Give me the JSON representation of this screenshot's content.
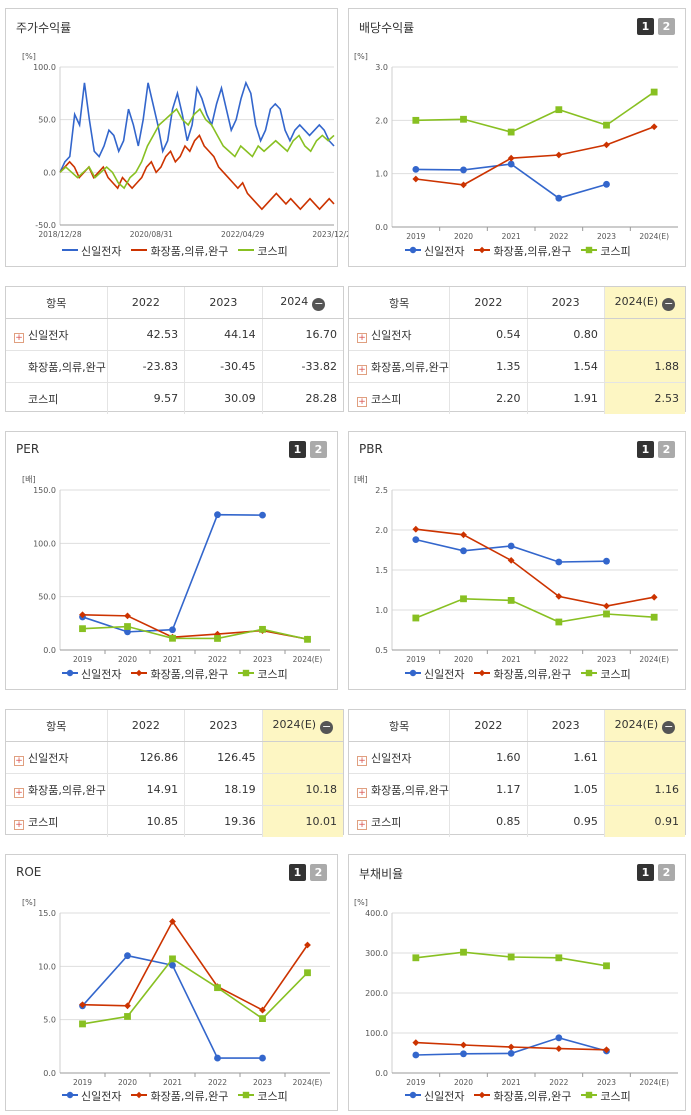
{
  "colors": {
    "s1": "#3366cc",
    "s2": "#cc3300",
    "s3": "#88c022"
  },
  "legend": [
    "신일전자",
    "화장품,의류,완구",
    "코스피"
  ],
  "buttons": {
    "b1": "1",
    "b2": "2"
  },
  "panels": {
    "stock": {
      "title": "주가수익률"
    },
    "div": {
      "title": "배당수익률"
    },
    "per": {
      "title": "PER"
    },
    "pbr": {
      "title": "PBR"
    },
    "roe": {
      "title": "ROE"
    },
    "debt": {
      "title": "부채비율"
    }
  },
  "tables": {
    "stock": {
      "header": [
        "항목",
        "2022",
        "2023",
        "2024"
      ],
      "rows": [
        {
          "name": "신일전자",
          "plus": true,
          "vals": [
            "42.53",
            "44.14",
            "16.70"
          ]
        },
        {
          "name": "화장품,의류,완구",
          "plus": false,
          "vals": [
            "-23.83",
            "-30.45",
            "-33.82"
          ]
        },
        {
          "name": "코스피",
          "plus": false,
          "vals": [
            "9.57",
            "30.09",
            "28.28"
          ]
        }
      ]
    },
    "div": {
      "header": [
        "항목",
        "2022",
        "2023",
        "2024(E)"
      ],
      "rows": [
        {
          "name": "신일전자",
          "plus": true,
          "vals": [
            "0.54",
            "0.80",
            ""
          ]
        },
        {
          "name": "화장품,의류,완구",
          "plus": true,
          "vals": [
            "1.35",
            "1.54",
            "1.88"
          ]
        },
        {
          "name": "코스피",
          "plus": true,
          "vals": [
            "2.20",
            "1.91",
            "2.53"
          ]
        }
      ]
    },
    "per": {
      "header": [
        "항목",
        "2022",
        "2023",
        "2024(E)"
      ],
      "rows": [
        {
          "name": "신일전자",
          "plus": true,
          "vals": [
            "126.86",
            "126.45",
            ""
          ]
        },
        {
          "name": "화장품,의류,완구",
          "plus": true,
          "vals": [
            "14.91",
            "18.19",
            "10.18"
          ]
        },
        {
          "name": "코스피",
          "plus": true,
          "vals": [
            "10.85",
            "19.36",
            "10.01"
          ]
        }
      ]
    },
    "pbr": {
      "header": [
        "항목",
        "2022",
        "2023",
        "2024(E)"
      ],
      "rows": [
        {
          "name": "신일전자",
          "plus": true,
          "vals": [
            "1.60",
            "1.61",
            ""
          ]
        },
        {
          "name": "화장품,의류,완구",
          "plus": true,
          "vals": [
            "1.17",
            "1.05",
            "1.16"
          ]
        },
        {
          "name": "코스피",
          "plus": true,
          "vals": [
            "0.85",
            "0.95",
            "0.91"
          ]
        }
      ]
    }
  },
  "chart_data": [
    {
      "id": "stock",
      "type": "line",
      "unit": "[%]",
      "ylim": [
        -50,
        100
      ],
      "yticks": [
        "100.0",
        "50.0",
        "0.0",
        "-50.0"
      ],
      "xticklabels": [
        "2018/12/28",
        "2020/08/31",
        "2022/04/29",
        "2023/12/28"
      ],
      "series": [
        {
          "name": "신일전자",
          "values": [
            0,
            10,
            15,
            55,
            45,
            85,
            50,
            20,
            15,
            25,
            40,
            35,
            20,
            30,
            60,
            45,
            25,
            50,
            85,
            65,
            45,
            20,
            30,
            60,
            75,
            55,
            30,
            45,
            80,
            70,
            55,
            45,
            65,
            80,
            60,
            40,
            50,
            70,
            85,
            75,
            45,
            30,
            40,
            60,
            65,
            60,
            40,
            30,
            40,
            45,
            40,
            35,
            40,
            45,
            40,
            30,
            25
          ]
        },
        {
          "name": "화장품,의류,완구",
          "values": [
            0,
            5,
            10,
            5,
            -5,
            0,
            5,
            -5,
            0,
            5,
            -5,
            -10,
            -15,
            -5,
            -10,
            -15,
            -10,
            -5,
            5,
            10,
            0,
            5,
            15,
            20,
            10,
            15,
            25,
            20,
            30,
            35,
            25,
            20,
            15,
            5,
            0,
            -5,
            -10,
            -15,
            -10,
            -20,
            -25,
            -30,
            -35,
            -30,
            -25,
            -20,
            -25,
            -30,
            -25,
            -30,
            -35,
            -30,
            -25,
            -30,
            -35,
            -30,
            -25,
            -30
          ]
        },
        {
          "name": "코스피",
          "values": [
            0,
            5,
            0,
            -5,
            0,
            5,
            -5,
            0,
            5,
            0,
            -10,
            -15,
            -5,
            0,
            10,
            25,
            35,
            45,
            50,
            55,
            60,
            50,
            45,
            55,
            60,
            50,
            45,
            35,
            25,
            20,
            15,
            25,
            20,
            15,
            25,
            20,
            25,
            30,
            25,
            20,
            30,
            35,
            25,
            20,
            30,
            35,
            30,
            35
          ]
        }
      ]
    },
    {
      "id": "div",
      "type": "line",
      "unit": "[%]",
      "ylim": [
        0,
        3
      ],
      "yticks": [
        "3.0",
        "2.0",
        "1.0",
        "0.0"
      ],
      "categories": [
        "2019",
        "2020",
        "2021",
        "2022",
        "2023",
        "2024(E)"
      ],
      "series": [
        {
          "name": "신일전자",
          "values": [
            1.08,
            1.07,
            1.18,
            0.54,
            0.8,
            null
          ]
        },
        {
          "name": "화장품,의류,완구",
          "values": [
            0.9,
            0.79,
            1.29,
            1.35,
            1.54,
            1.88
          ]
        },
        {
          "name": "코스피",
          "values": [
            2.0,
            2.02,
            1.78,
            2.2,
            1.91,
            2.53
          ]
        }
      ]
    },
    {
      "id": "per",
      "type": "line",
      "unit": "[배]",
      "ylim": [
        0,
        150
      ],
      "yticks": [
        "150.0",
        "100.0",
        "50.0",
        "0.0"
      ],
      "categories": [
        "2019",
        "2020",
        "2021",
        "2022",
        "2023",
        "2024(E)"
      ],
      "series": [
        {
          "name": "신일전자",
          "values": [
            31,
            17,
            19,
            126.86,
            126.45,
            null
          ]
        },
        {
          "name": "화장품,의류,완구",
          "values": [
            33,
            32,
            12,
            14.91,
            18.19,
            10.18
          ]
        },
        {
          "name": "코스피",
          "values": [
            20,
            22,
            11,
            10.85,
            19.36,
            10.01
          ]
        }
      ]
    },
    {
      "id": "pbr",
      "type": "line",
      "unit": "[배]",
      "ylim": [
        0.5,
        2.5
      ],
      "yticks": [
        "2.5",
        "2.0",
        "1.5",
        "1.0",
        "0.5"
      ],
      "categories": [
        "2019",
        "2020",
        "2021",
        "2022",
        "2023",
        "2024(E)"
      ],
      "series": [
        {
          "name": "신일전자",
          "values": [
            1.88,
            1.74,
            1.8,
            1.6,
            1.61,
            null
          ]
        },
        {
          "name": "화장품,의류,완구",
          "values": [
            2.01,
            1.94,
            1.62,
            1.17,
            1.05,
            1.16
          ]
        },
        {
          "name": "코스피",
          "values": [
            0.9,
            1.14,
            1.12,
            0.85,
            0.95,
            0.91
          ]
        }
      ]
    },
    {
      "id": "roe",
      "type": "line",
      "unit": "[%]",
      "ylim": [
        0,
        15
      ],
      "yticks": [
        "15.0",
        "10.0",
        "5.0",
        "0.0"
      ],
      "categories": [
        "2019",
        "2020",
        "2021",
        "2022",
        "2023",
        "2024(E)"
      ],
      "series": [
        {
          "name": "신일전자",
          "values": [
            6.3,
            11.0,
            10.1,
            1.4,
            1.4,
            null
          ]
        },
        {
          "name": "화장품,의류,완구",
          "values": [
            6.4,
            6.3,
            14.2,
            8.1,
            5.9,
            12.0
          ]
        },
        {
          "name": "코스피",
          "values": [
            4.6,
            5.3,
            10.7,
            8.0,
            5.1,
            9.4
          ]
        }
      ]
    },
    {
      "id": "debt",
      "type": "line",
      "unit": "[%]",
      "ylim": [
        0,
        400
      ],
      "yticks": [
        "400.0",
        "300.0",
        "200.0",
        "100.0",
        "0.0"
      ],
      "categories": [
        "2019",
        "2020",
        "2021",
        "2022",
        "2023",
        "2024(E)"
      ],
      "series": [
        {
          "name": "신일전자",
          "values": [
            45,
            48,
            49,
            88,
            55,
            null
          ]
        },
        {
          "name": "화장품,의류,완구",
          "values": [
            76,
            70,
            65,
            61,
            58,
            null
          ]
        },
        {
          "name": "코스피",
          "values": [
            288,
            302,
            290,
            288,
            268,
            null
          ]
        }
      ]
    }
  ]
}
